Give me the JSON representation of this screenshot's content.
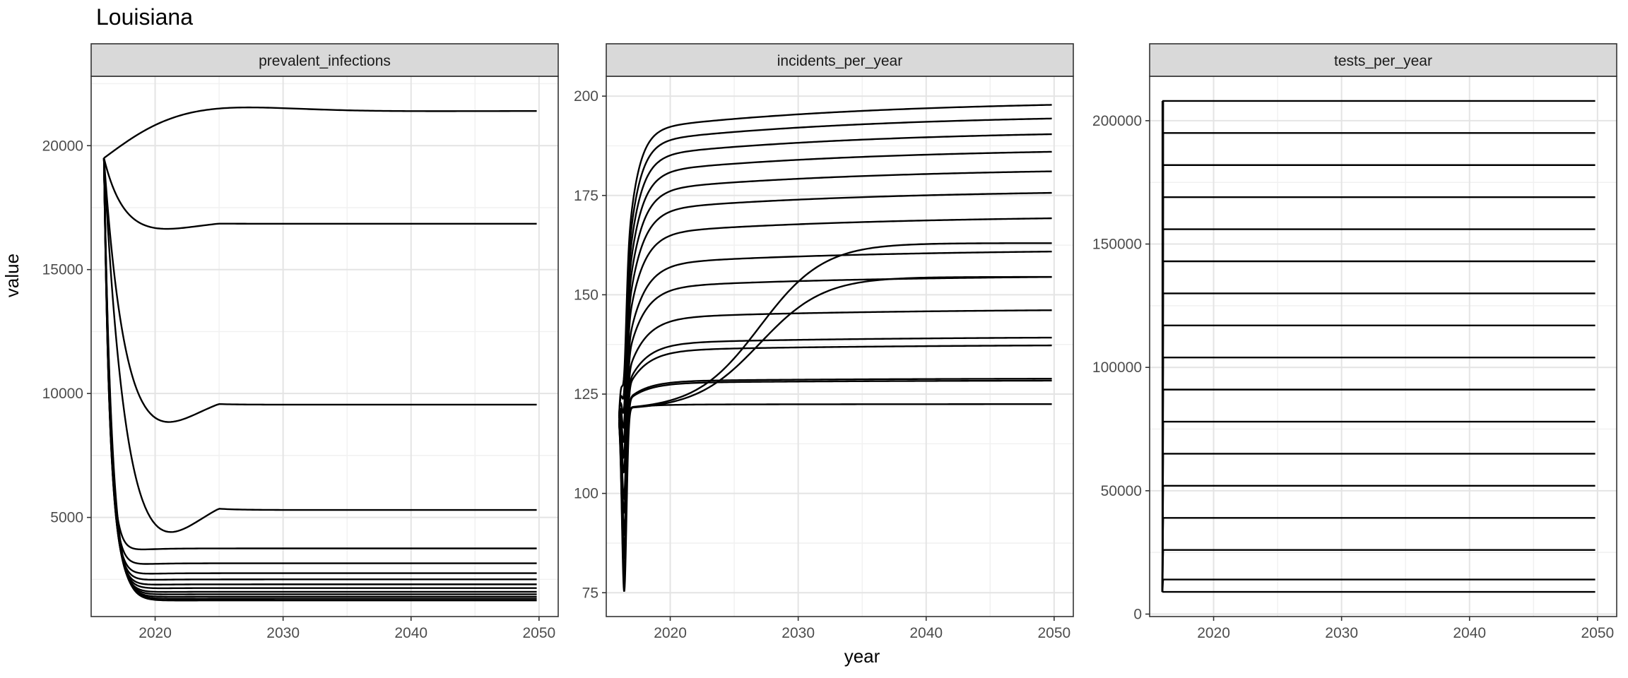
{
  "title": "Louisiana",
  "xlabel": "year",
  "ylabel": "value",
  "chart_data": [
    {
      "type": "line",
      "facet": "prevalent_infections",
      "xlim": [
        2015,
        2051.5
      ],
      "ylim": [
        1000,
        22800
      ],
      "xticks": [
        2020,
        2030,
        2040,
        2050
      ],
      "yticks": [
        5000,
        10000,
        15000,
        20000
      ],
      "start": {
        "x": 2016,
        "y": 19500
      },
      "series_final_values": [
        21400,
        16850,
        9550,
        5300,
        3750,
        3150,
        2750,
        2500,
        2300,
        2150,
        2000,
        1900,
        1800,
        1720,
        1650
      ],
      "grid": true
    },
    {
      "type": "line",
      "facet": "incidents_per_year",
      "xlim": [
        2015,
        2051.5
      ],
      "ylim": [
        69,
        205
      ],
      "xticks": [
        2020,
        2030,
        2040,
        2050
      ],
      "yticks": [
        75,
        100,
        125,
        150,
        175,
        200
      ],
      "start": {
        "x": 2016,
        "y": 121
      },
      "series_final_values": [
        199,
        195.5,
        191.5,
        187,
        182,
        176.5,
        170,
        163,
        161.5,
        155,
        154.5,
        146.5,
        139.5,
        137.5,
        129,
        128.5,
        122.5
      ],
      "grid": true
    },
    {
      "type": "line",
      "facet": "tests_per_year",
      "xlim": [
        2015,
        2051.5
      ],
      "ylim": [
        -1000,
        218000
      ],
      "xticks": [
        2020,
        2030,
        2040,
        2050
      ],
      "yticks": [
        0,
        50000,
        100000,
        150000,
        200000
      ],
      "series_final_values": [
        208000,
        195000,
        182000,
        169000,
        156000,
        143000,
        130000,
        117000,
        104000,
        91000,
        78000,
        65000,
        52000,
        39000,
        26000,
        14000,
        9000
      ],
      "grid": true
    }
  ]
}
